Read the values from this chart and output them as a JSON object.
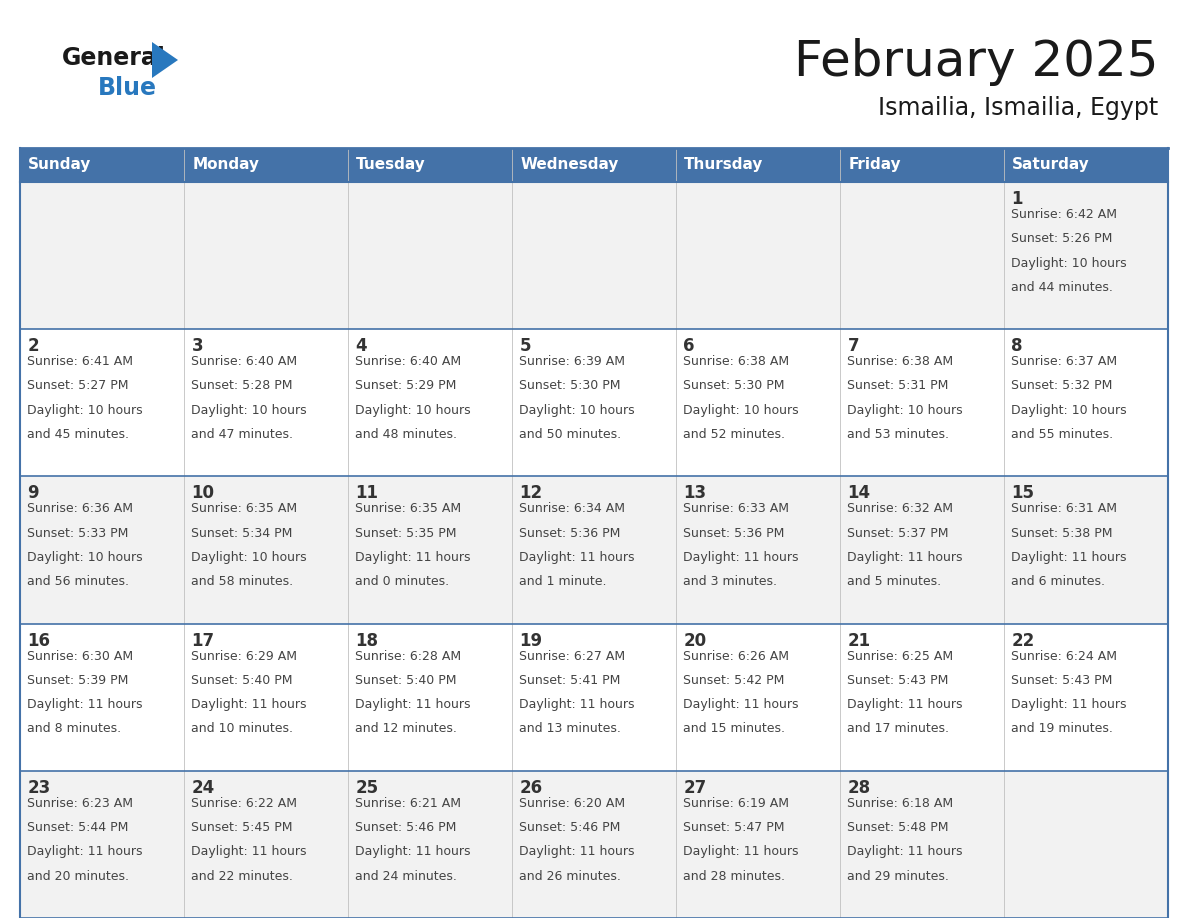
{
  "title": "February 2025",
  "subtitle": "Ismailia, Ismailia, Egypt",
  "days_of_week": [
    "Sunday",
    "Monday",
    "Tuesday",
    "Wednesday",
    "Thursday",
    "Friday",
    "Saturday"
  ],
  "header_bg_color": "#4472A8",
  "header_text_color": "#FFFFFF",
  "row_odd_bg": "#F2F2F2",
  "row_even_bg": "#FFFFFF",
  "cell_border_color": "#4472A8",
  "cell_divider_color": "#C0C0C0",
  "day_number_color": "#333333",
  "info_text_color": "#444444",
  "title_color": "#1a1a1a",
  "subtitle_color": "#1a1a1a",
  "logo_general_color": "#1a1a1a",
  "logo_blue_color": "#2878BE",
  "calendar_data": [
    [
      null,
      null,
      null,
      null,
      null,
      null,
      {
        "day": 1,
        "sunrise": "6:42 AM",
        "sunset": "5:26 PM",
        "daylight_line1": "Daylight: 10 hours",
        "daylight_line2": "and 44 minutes."
      }
    ],
    [
      {
        "day": 2,
        "sunrise": "6:41 AM",
        "sunset": "5:27 PM",
        "daylight_line1": "Daylight: 10 hours",
        "daylight_line2": "and 45 minutes."
      },
      {
        "day": 3,
        "sunrise": "6:40 AM",
        "sunset": "5:28 PM",
        "daylight_line1": "Daylight: 10 hours",
        "daylight_line2": "and 47 minutes."
      },
      {
        "day": 4,
        "sunrise": "6:40 AM",
        "sunset": "5:29 PM",
        "daylight_line1": "Daylight: 10 hours",
        "daylight_line2": "and 48 minutes."
      },
      {
        "day": 5,
        "sunrise": "6:39 AM",
        "sunset": "5:30 PM",
        "daylight_line1": "Daylight: 10 hours",
        "daylight_line2": "and 50 minutes."
      },
      {
        "day": 6,
        "sunrise": "6:38 AM",
        "sunset": "5:30 PM",
        "daylight_line1": "Daylight: 10 hours",
        "daylight_line2": "and 52 minutes."
      },
      {
        "day": 7,
        "sunrise": "6:38 AM",
        "sunset": "5:31 PM",
        "daylight_line1": "Daylight: 10 hours",
        "daylight_line2": "and 53 minutes."
      },
      {
        "day": 8,
        "sunrise": "6:37 AM",
        "sunset": "5:32 PM",
        "daylight_line1": "Daylight: 10 hours",
        "daylight_line2": "and 55 minutes."
      }
    ],
    [
      {
        "day": 9,
        "sunrise": "6:36 AM",
        "sunset": "5:33 PM",
        "daylight_line1": "Daylight: 10 hours",
        "daylight_line2": "and 56 minutes."
      },
      {
        "day": 10,
        "sunrise": "6:35 AM",
        "sunset": "5:34 PM",
        "daylight_line1": "Daylight: 10 hours",
        "daylight_line2": "and 58 minutes."
      },
      {
        "day": 11,
        "sunrise": "6:35 AM",
        "sunset": "5:35 PM",
        "daylight_line1": "Daylight: 11 hours",
        "daylight_line2": "and 0 minutes."
      },
      {
        "day": 12,
        "sunrise": "6:34 AM",
        "sunset": "5:36 PM",
        "daylight_line1": "Daylight: 11 hours",
        "daylight_line2": "and 1 minute."
      },
      {
        "day": 13,
        "sunrise": "6:33 AM",
        "sunset": "5:36 PM",
        "daylight_line1": "Daylight: 11 hours",
        "daylight_line2": "and 3 minutes."
      },
      {
        "day": 14,
        "sunrise": "6:32 AM",
        "sunset": "5:37 PM",
        "daylight_line1": "Daylight: 11 hours",
        "daylight_line2": "and 5 minutes."
      },
      {
        "day": 15,
        "sunrise": "6:31 AM",
        "sunset": "5:38 PM",
        "daylight_line1": "Daylight: 11 hours",
        "daylight_line2": "and 6 minutes."
      }
    ],
    [
      {
        "day": 16,
        "sunrise": "6:30 AM",
        "sunset": "5:39 PM",
        "daylight_line1": "Daylight: 11 hours",
        "daylight_line2": "and 8 minutes."
      },
      {
        "day": 17,
        "sunrise": "6:29 AM",
        "sunset": "5:40 PM",
        "daylight_line1": "Daylight: 11 hours",
        "daylight_line2": "and 10 minutes."
      },
      {
        "day": 18,
        "sunrise": "6:28 AM",
        "sunset": "5:40 PM",
        "daylight_line1": "Daylight: 11 hours",
        "daylight_line2": "and 12 minutes."
      },
      {
        "day": 19,
        "sunrise": "6:27 AM",
        "sunset": "5:41 PM",
        "daylight_line1": "Daylight: 11 hours",
        "daylight_line2": "and 13 minutes."
      },
      {
        "day": 20,
        "sunrise": "6:26 AM",
        "sunset": "5:42 PM",
        "daylight_line1": "Daylight: 11 hours",
        "daylight_line2": "and 15 minutes."
      },
      {
        "day": 21,
        "sunrise": "6:25 AM",
        "sunset": "5:43 PM",
        "daylight_line1": "Daylight: 11 hours",
        "daylight_line2": "and 17 minutes."
      },
      {
        "day": 22,
        "sunrise": "6:24 AM",
        "sunset": "5:43 PM",
        "daylight_line1": "Daylight: 11 hours",
        "daylight_line2": "and 19 minutes."
      }
    ],
    [
      {
        "day": 23,
        "sunrise": "6:23 AM",
        "sunset": "5:44 PM",
        "daylight_line1": "Daylight: 11 hours",
        "daylight_line2": "and 20 minutes."
      },
      {
        "day": 24,
        "sunrise": "6:22 AM",
        "sunset": "5:45 PM",
        "daylight_line1": "Daylight: 11 hours",
        "daylight_line2": "and 22 minutes."
      },
      {
        "day": 25,
        "sunrise": "6:21 AM",
        "sunset": "5:46 PM",
        "daylight_line1": "Daylight: 11 hours",
        "daylight_line2": "and 24 minutes."
      },
      {
        "day": 26,
        "sunrise": "6:20 AM",
        "sunset": "5:46 PM",
        "daylight_line1": "Daylight: 11 hours",
        "daylight_line2": "and 26 minutes."
      },
      {
        "day": 27,
        "sunrise": "6:19 AM",
        "sunset": "5:47 PM",
        "daylight_line1": "Daylight: 11 hours",
        "daylight_line2": "and 28 minutes."
      },
      {
        "day": 28,
        "sunrise": "6:18 AM",
        "sunset": "5:48 PM",
        "daylight_line1": "Daylight: 11 hours",
        "daylight_line2": "and 29 minutes."
      },
      null
    ]
  ]
}
